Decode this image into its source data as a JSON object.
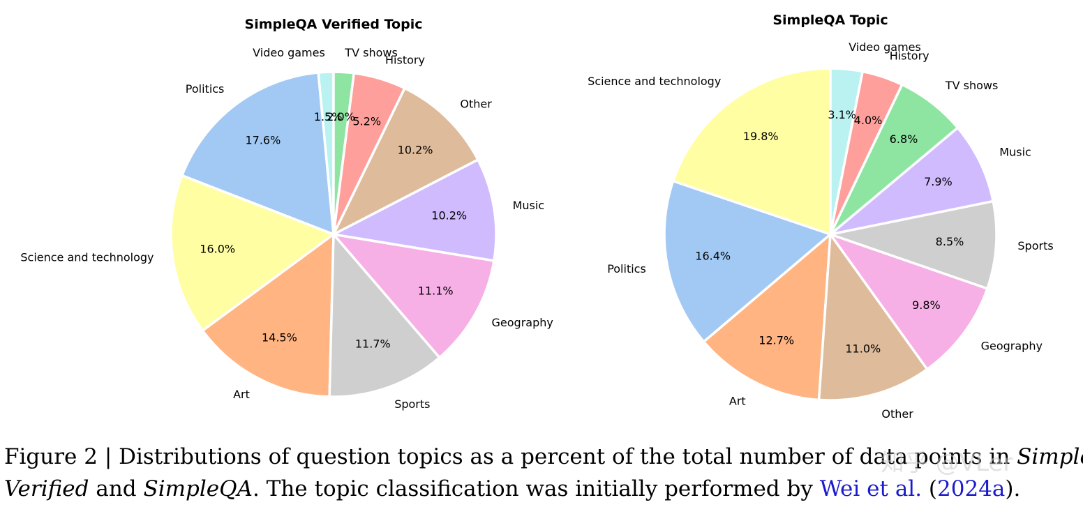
{
  "chart_data": [
    {
      "type": "pie",
      "title": "SimpleQA Verified Topic",
      "start_angle_deg": 90,
      "direction": "counterclockwise",
      "slices": [
        {
          "label": "Video games",
          "value": 1.5,
          "pct_label": "1.5%",
          "color": "#b9f2f0"
        },
        {
          "label": "Politics",
          "value": 17.6,
          "pct_label": "17.6%",
          "color": "#a1c9f4"
        },
        {
          "label": "Science and technology",
          "value": 16.0,
          "pct_label": "16.0%",
          "color": "#fffea3"
        },
        {
          "label": "Art",
          "value": 14.5,
          "pct_label": "14.5%",
          "color": "#ffb482"
        },
        {
          "label": "Sports",
          "value": 11.7,
          "pct_label": "11.7%",
          "color": "#cfcfcf"
        },
        {
          "label": "Geography",
          "value": 11.1,
          "pct_label": "11.1%",
          "color": "#f7b0e6"
        },
        {
          "label": "Music",
          "value": 10.2,
          "pct_label": "10.2%",
          "color": "#d0bbff"
        },
        {
          "label": "Other",
          "value": 10.2,
          "pct_label": "10.2%",
          "color": "#debb9b"
        },
        {
          "label": "History",
          "value": 5.2,
          "pct_label": "5.2%",
          "color": "#ff9f9b"
        },
        {
          "label": "TV shows",
          "value": 2.0,
          "pct_label": "2.0%",
          "color": "#8de5a1"
        }
      ]
    },
    {
      "type": "pie",
      "title": "SimpleQA Topic",
      "start_angle_deg": 90,
      "direction": "counterclockwise",
      "slices": [
        {
          "label": "Science and technology",
          "value": 19.8,
          "pct_label": "19.8%",
          "color": "#fffea3"
        },
        {
          "label": "Politics",
          "value": 16.4,
          "pct_label": "16.4%",
          "color": "#a1c9f4"
        },
        {
          "label": "Art",
          "value": 12.7,
          "pct_label": "12.7%",
          "color": "#ffb482"
        },
        {
          "label": "Other",
          "value": 11.0,
          "pct_label": "11.0%",
          "color": "#debb9b"
        },
        {
          "label": "Geography",
          "value": 9.8,
          "pct_label": "9.8%",
          "color": "#f7b0e6"
        },
        {
          "label": "Sports",
          "value": 8.5,
          "pct_label": "8.5%",
          "color": "#cfcfcf"
        },
        {
          "label": "Music",
          "value": 7.9,
          "pct_label": "7.9%",
          "color": "#d0bbff"
        },
        {
          "label": "TV shows",
          "value": 6.8,
          "pct_label": "6.8%",
          "color": "#8de5a1"
        },
        {
          "label": "History",
          "value": 4.0,
          "pct_label": "4.0%",
          "color": "#ff9f9b"
        },
        {
          "label": "Video games",
          "value": 3.1,
          "pct_label": "3.1%",
          "color": "#b9f2f0"
        }
      ]
    }
  ],
  "caption": {
    "line1_prefix": "Figure 2 | Distributions of question topics as a percent of the total number of data points in ",
    "line1_italic": "SimpleQA",
    "line2_italic_a": "Verified",
    "line2_and": " and ",
    "line2_italic_b": "SimpleQA",
    "line2_middle": ". The topic classification was initially performed by ",
    "link_authors": "Wei et al.",
    "link_open": " (",
    "link_year": "2024a",
    "link_close": ")."
  },
  "watermark": "知乎 @VLer",
  "colors": {
    "slice_edge": "#ffffff",
    "link": "#1a1acf"
  }
}
